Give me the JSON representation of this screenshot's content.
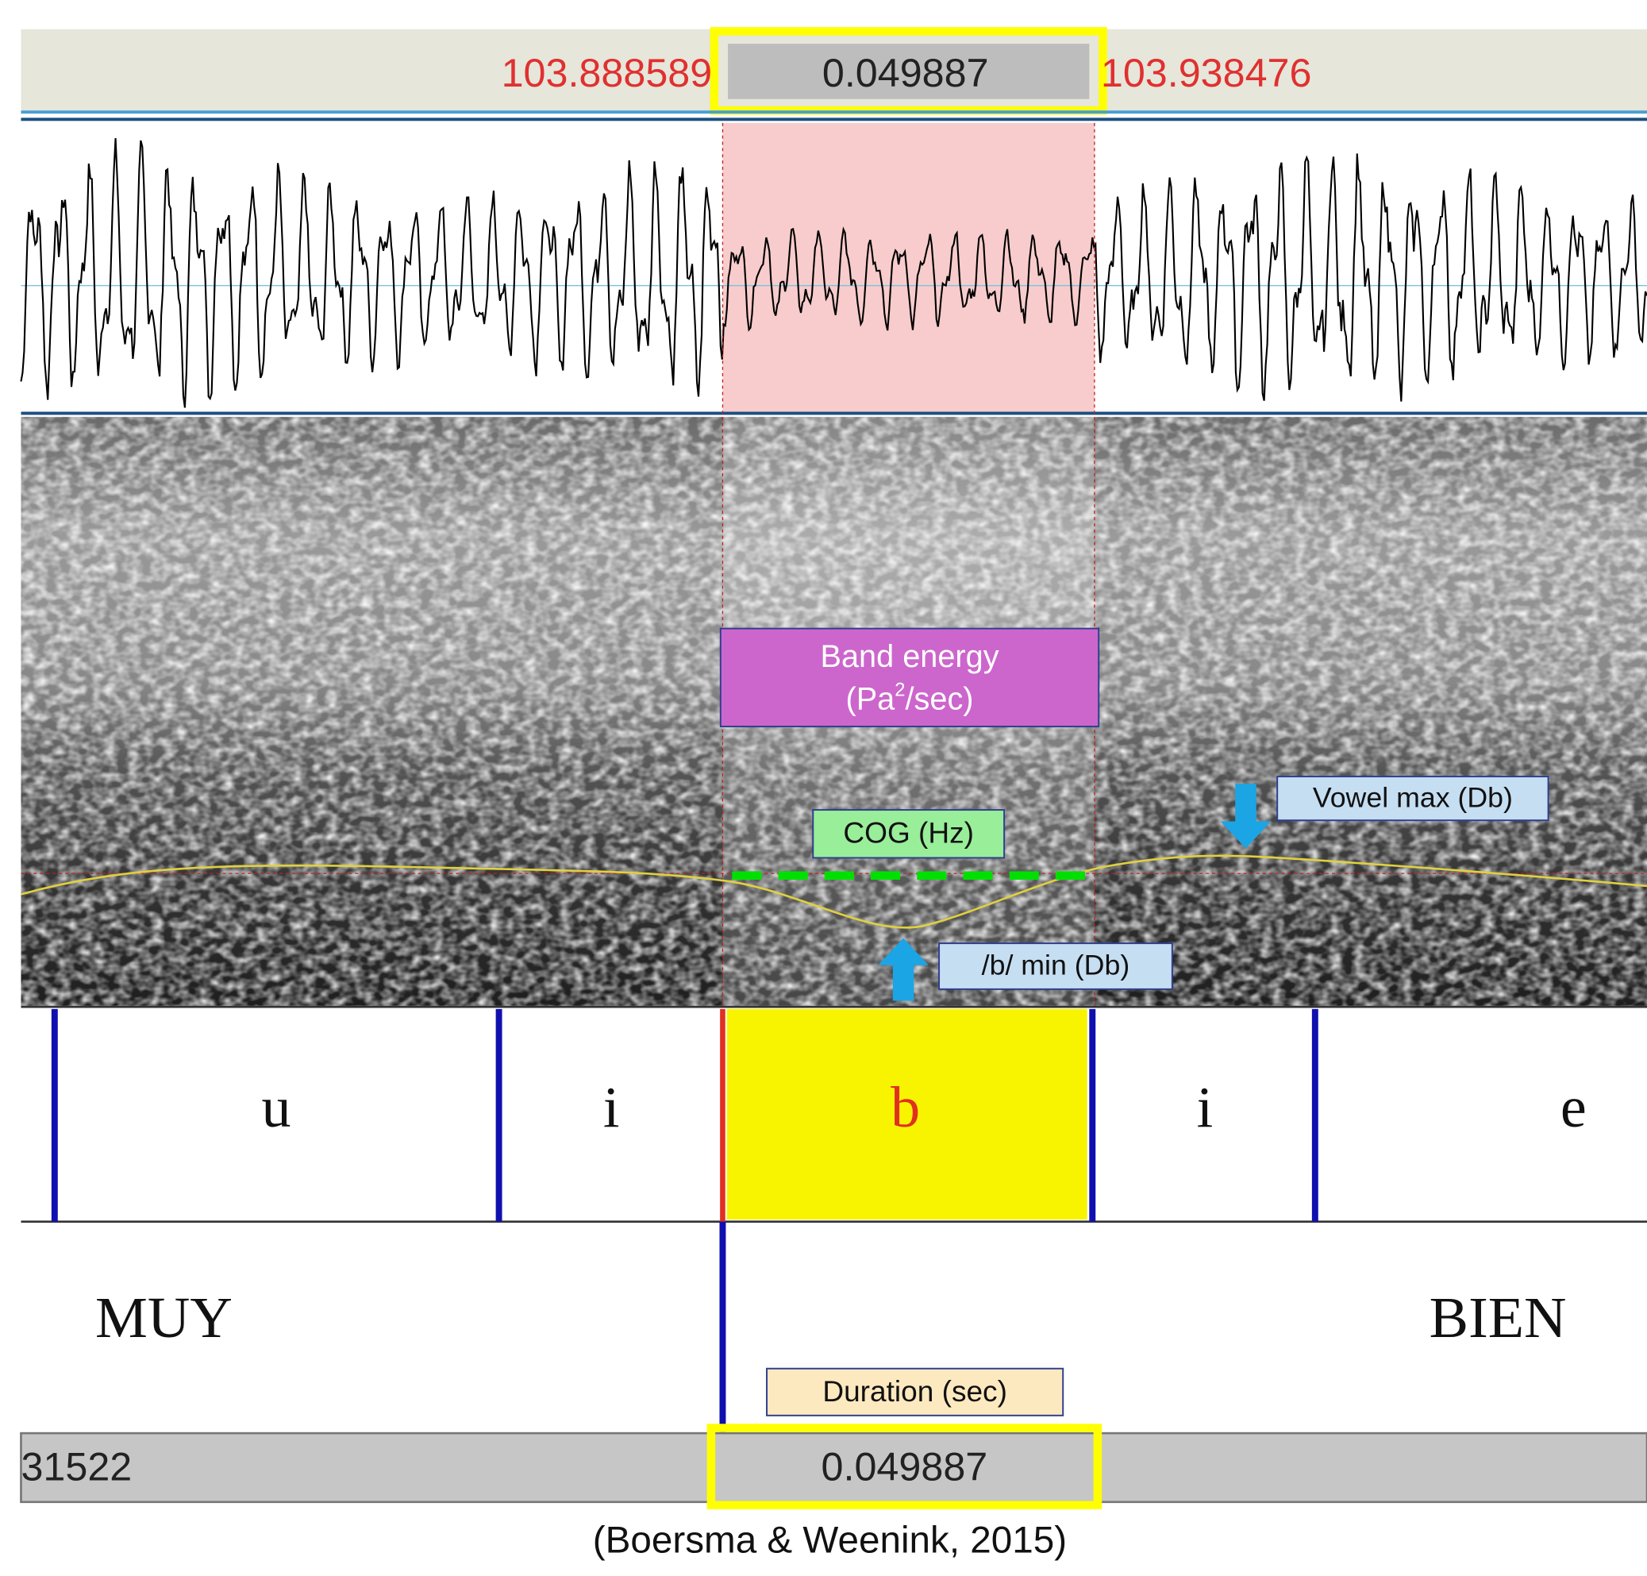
{
  "time_bar": {
    "left": "103.888589",
    "selection": "0.049887",
    "right": "103.938476"
  },
  "annotations": {
    "band_energy": {
      "line1": "Band energy",
      "line2": [
        "(Pa",
        "2",
        "/sec)"
      ]
    },
    "cog": "COG (Hz)",
    "vowel_max": "Vowel max (Db)",
    "b_min": "/b/ min (Db)",
    "duration": "Duration (sec)"
  },
  "phone_tier": [
    "u",
    "i",
    "b",
    "i",
    "e"
  ],
  "word_tier": [
    "MUY",
    "BIEN"
  ],
  "bottom_bar": {
    "left": "31522",
    "selection": "0.049887"
  },
  "citation": "(Boersma & Weenink, 2015)"
}
